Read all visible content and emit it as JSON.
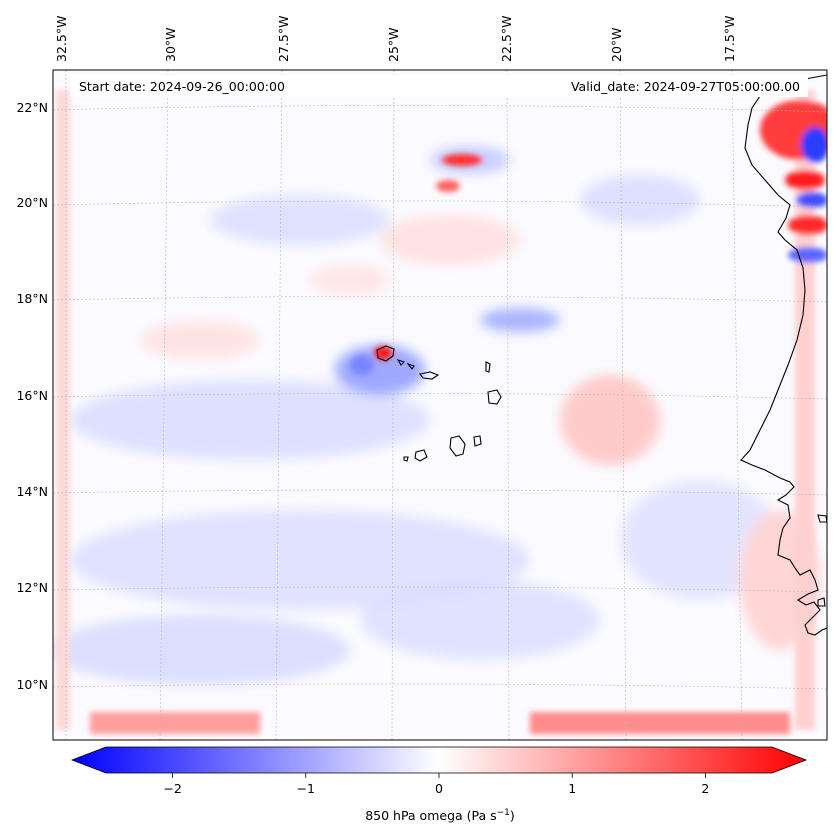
{
  "map": {
    "start_date": "Start date: 2024-09-26_00:00:00",
    "valid_date": "Valid_date: 2024-09-27T05:00:00.00",
    "lon_labels": [
      "32.5°W",
      "30°W",
      "27.5°W",
      "25°W",
      "22.5°W",
      "20°W",
      "17.5°W"
    ],
    "lat_labels": [
      "22°N",
      "20°N",
      "18°N",
      "16°N",
      "14°N",
      "12°N",
      "10°N"
    ],
    "colors": {
      "negative": "#0000ff",
      "zero": "#ffffff",
      "positive": "#ff0000",
      "coastline": "#000000"
    }
  },
  "colorbar": {
    "label": "850 hPa omega (Pa s",
    "label_sup": "−1",
    "label_close": ")",
    "ticks": [
      "−2",
      "−1",
      "0",
      "1",
      "2"
    ],
    "tick_values": [
      -2,
      -1,
      0,
      1,
      2
    ],
    "range": [
      -2.6,
      2.6
    ]
  }
}
